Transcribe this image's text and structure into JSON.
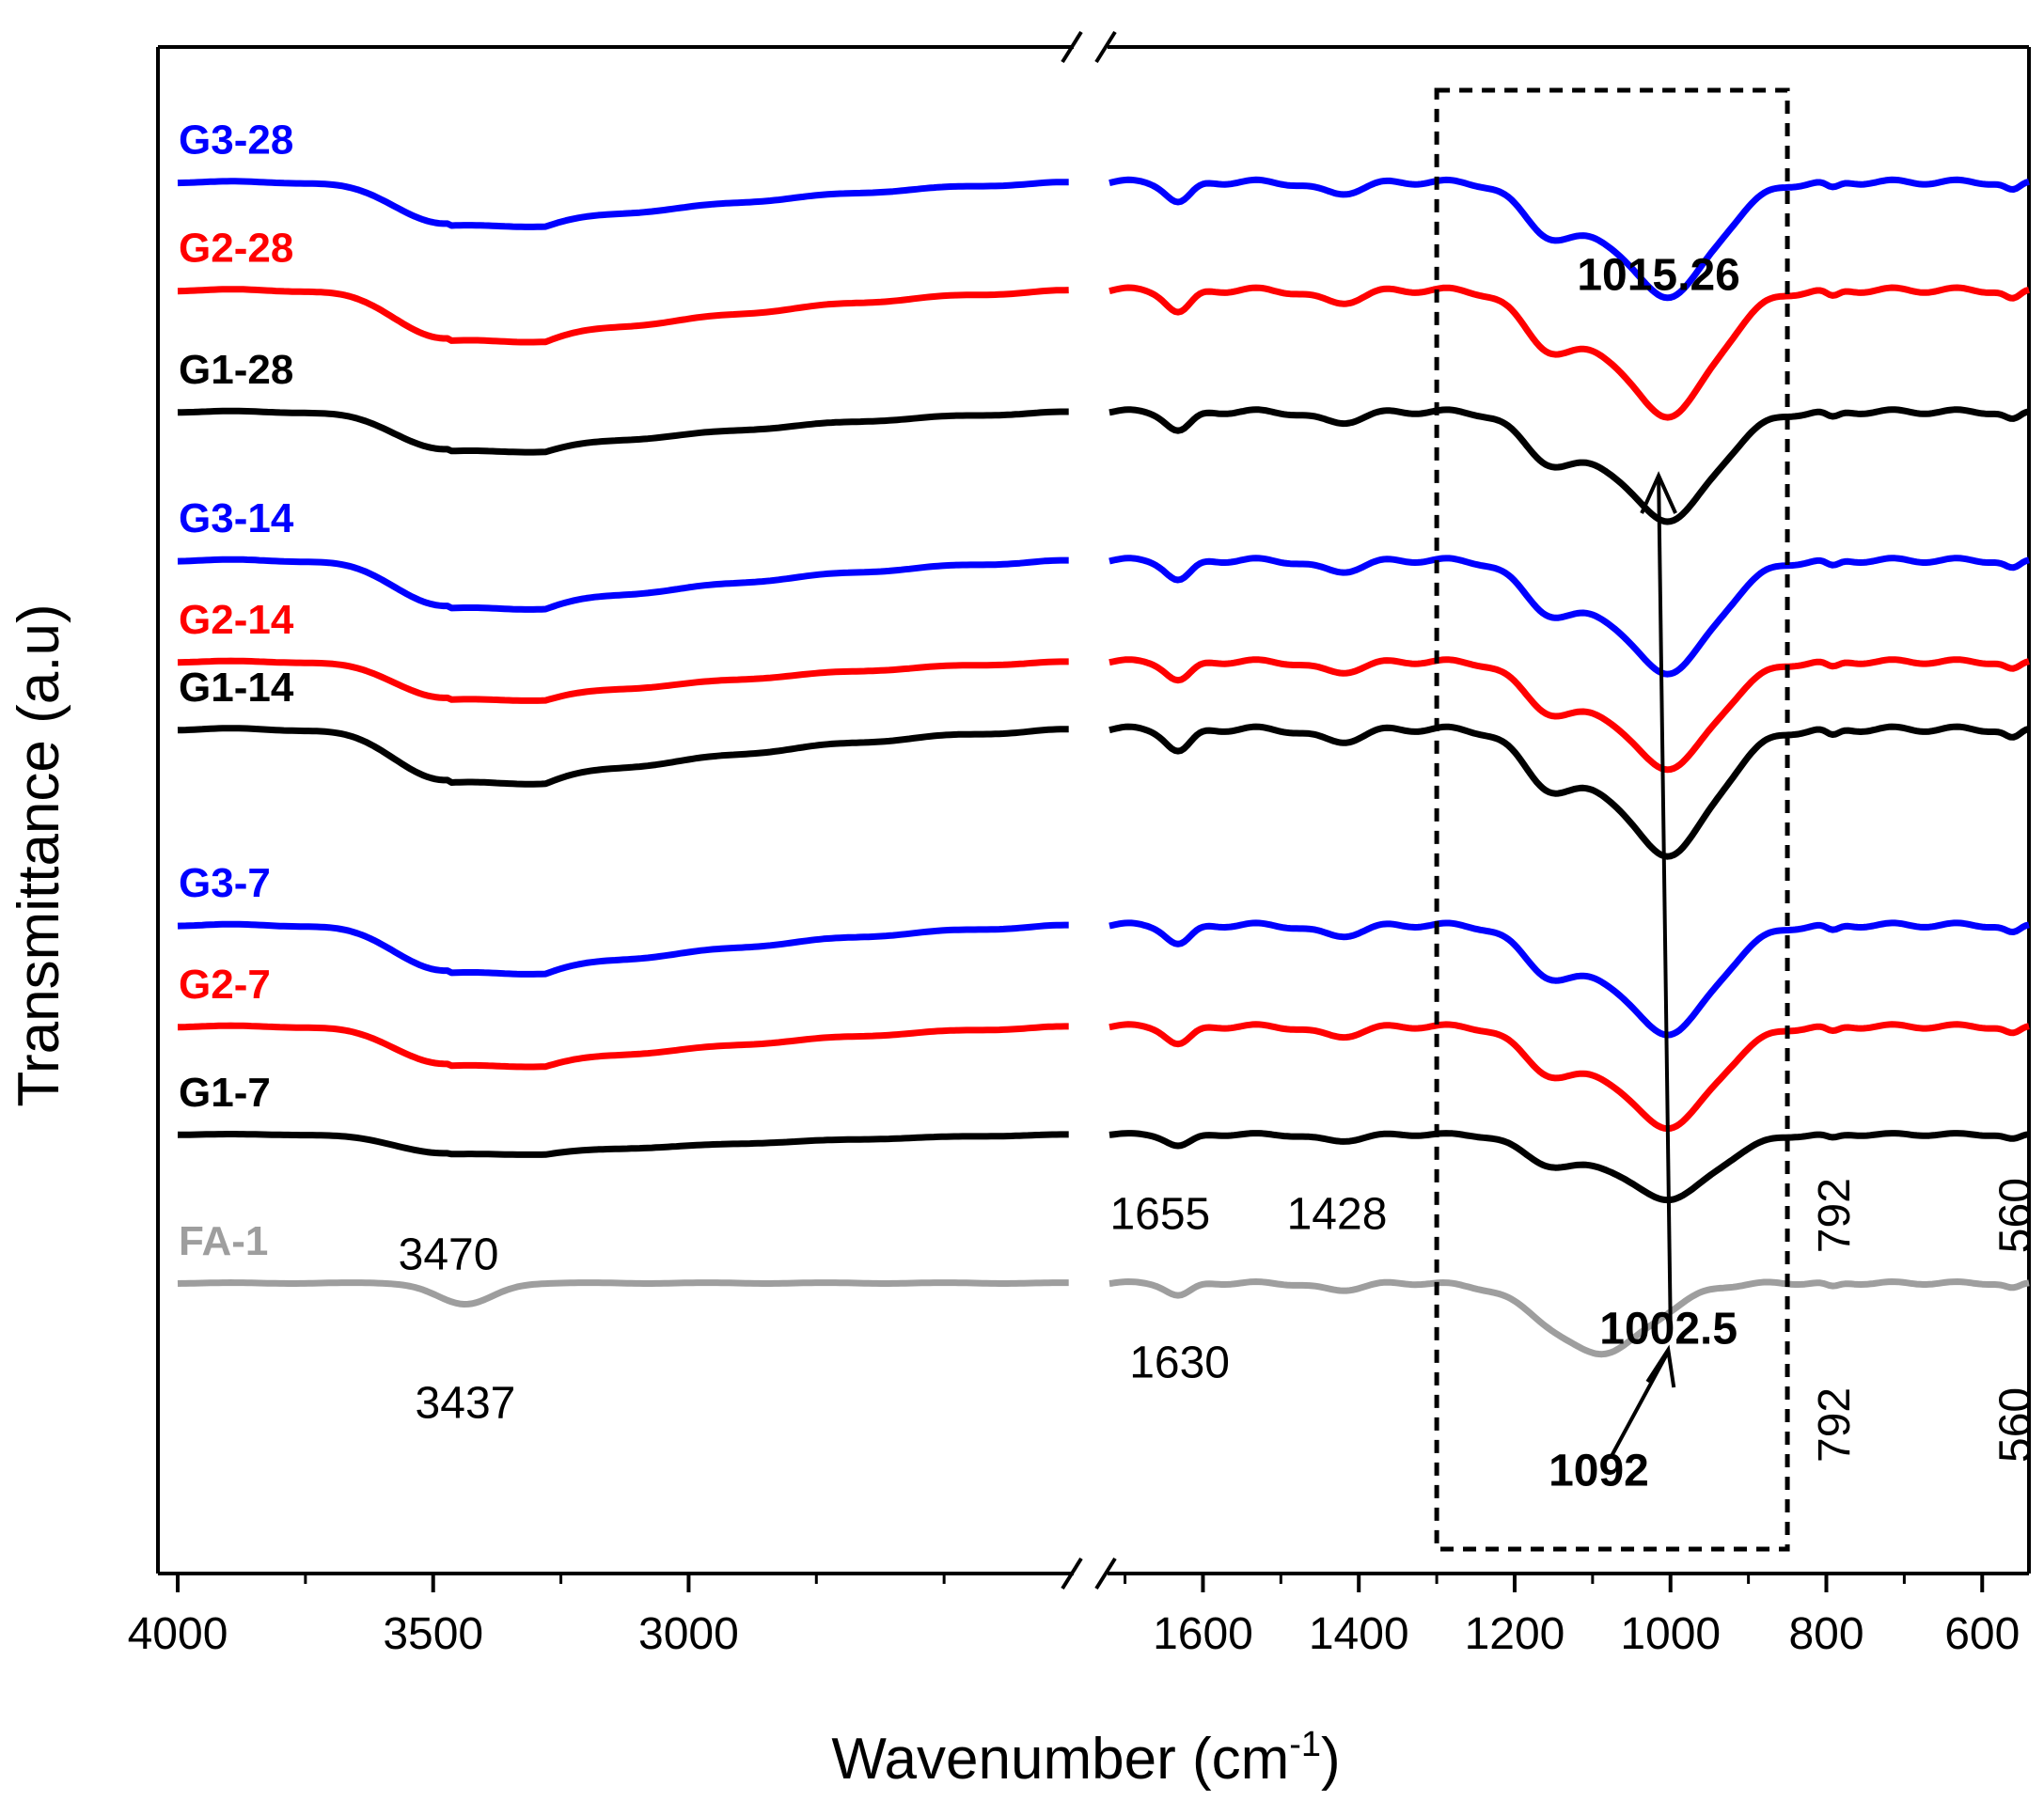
{
  "chart_data": {
    "type": "line",
    "title": "",
    "xlabel_main": "Wavenumber (cm",
    "xlabel_sup": "-1",
    "xlabel_close": ")",
    "ylabel": "Transmittance (a.u)",
    "x_axis_break": true,
    "xlim_left": [
      4000,
      2250
    ],
    "xlim_right": [
      1720,
      540
    ],
    "xticks_left": [
      4000,
      3500,
      3000
    ],
    "xticks_right": [
      1600,
      1400,
      1200,
      1000,
      800,
      600
    ],
    "xtick_labels": [
      "4000",
      "3500",
      "3000",
      "1600",
      "1400",
      "1200",
      "1000",
      "800",
      "600"
    ],
    "colors": {
      "G1": "#000000",
      "G2": "#ff0000",
      "G3": "#0000ff",
      "FA": "#9e9e9e"
    },
    "series": [
      {
        "name": "G3-28",
        "color": "#0000ff",
        "offset": 9.7,
        "d1": 3.1,
        "d2": 6.0
      },
      {
        "name": "G2-28",
        "color": "#ff0000",
        "offset": 8.9,
        "d1": 3.6,
        "d2": 6.6
      },
      {
        "name": "G1-28",
        "color": "#000000",
        "offset": 8.0,
        "d1": 2.8,
        "d2": 5.7
      },
      {
        "name": "G3-14",
        "color": "#0000ff",
        "offset": 6.9,
        "d1": 3.4,
        "d2": 5.9
      },
      {
        "name": "G2-14",
        "color": "#ff0000",
        "offset": 6.15,
        "d1": 2.7,
        "d2": 5.6
      },
      {
        "name": "G1-14",
        "color": "#000000",
        "offset": 5.65,
        "d1": 3.8,
        "d2": 6.6
      },
      {
        "name": "G3-7",
        "color": "#0000ff",
        "offset": 4.2,
        "d1": 3.4,
        "d2": 5.7
      },
      {
        "name": "G2-7",
        "color": "#ff0000",
        "offset": 3.45,
        "d1": 2.8,
        "d2": 5.3
      },
      {
        "name": "G1-7",
        "color": "#000000",
        "offset": 2.65,
        "d1": 1.4,
        "d2": 3.4
      },
      {
        "name": "FA-1",
        "color": "#9e9e9e",
        "offset": 1.55,
        "d1": 1.6,
        "d2": 3.7
      }
    ],
    "annotations": [
      {
        "text": "3470",
        "x": 3470,
        "y": 1.65,
        "bold": false,
        "rotate": false
      },
      {
        "text": "3437",
        "x": 3437,
        "y": 0.55,
        "bold": false,
        "rotate": false
      },
      {
        "text": "1655",
        "x": 1655,
        "y": 1.95,
        "bold": false,
        "rotate": false
      },
      {
        "text": "1428",
        "x": 1428,
        "y": 1.95,
        "bold": false,
        "rotate": false
      },
      {
        "text": "1630",
        "x": 1630,
        "y": 0.85,
        "bold": false,
        "rotate": false
      },
      {
        "text": "1015.26",
        "x": 1015.26,
        "y": 8.9,
        "bold": true,
        "rotate": false
      },
      {
        "text": "1002.5",
        "x": 1002.5,
        "y": 1.1,
        "bold": true,
        "rotate": false
      },
      {
        "text": "1092",
        "x": 1092,
        "y": 0.05,
        "bold": true,
        "rotate": false
      },
      {
        "text": "792",
        "x": 792,
        "y": 2.05,
        "bold": false,
        "rotate": true
      },
      {
        "text": "792",
        "x": 792,
        "y": 0.5,
        "bold": false,
        "rotate": true
      },
      {
        "text": "560",
        "x": 560,
        "y": 2.05,
        "bold": false,
        "rotate": true
      },
      {
        "text": "560",
        "x": 560,
        "y": 0.5,
        "bold": false,
        "rotate": true
      }
    ],
    "highlight_box_x": [
      1300,
      850
    ],
    "ylim": [
      -0.6,
      10.7
    ]
  }
}
